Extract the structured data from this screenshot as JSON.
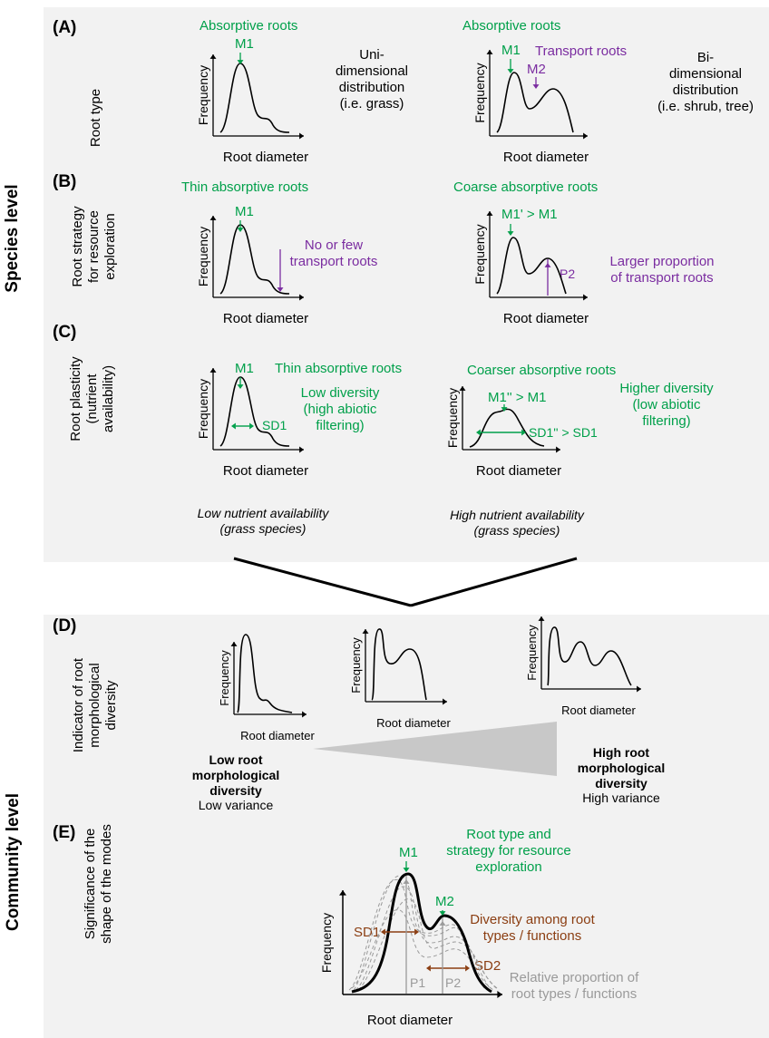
{
  "sections": {
    "species": "Species level",
    "community": "Community level"
  },
  "axis": {
    "frequency": "Frequency",
    "diameter": "Root diameter"
  },
  "A": {
    "label": "(A)",
    "side": "Root type",
    "left_title": "Absorptive roots",
    "left_mode": "M1",
    "left_desc": [
      "Uni-",
      "dimensional",
      "distribution",
      "(i.e. grass)"
    ],
    "right_title": "Absorptive roots",
    "right_mode1": "M1",
    "right_mode2": "M2",
    "right_transport": "Transport roots",
    "right_desc": [
      "Bi-",
      "dimensional",
      "distribution",
      "(i.e. shrub, tree)"
    ]
  },
  "B": {
    "label": "(B)",
    "side": [
      "Root strategy",
      "for resource",
      "exploration"
    ],
    "left_title": "Thin absorptive roots",
    "left_mode": "M1",
    "left_note": [
      "No or few",
      "transport roots"
    ],
    "right_title": "Coarse absorptive roots",
    "right_mode": "M1' > M1",
    "right_p2": "P2",
    "right_note": [
      "Larger proportion",
      "of transport roots"
    ]
  },
  "C": {
    "label": "(C)",
    "side": [
      "Root plasticity",
      "(nutrient",
      "availability)"
    ],
    "left_mode": "M1",
    "left_title": "Thin absorptive roots",
    "left_sd": "SD1",
    "left_note": [
      "Low diversity",
      "(high abiotic",
      "filtering)"
    ],
    "left_caption": [
      "Low nutrient availability",
      "(grass species)"
    ],
    "right_title": "Coarser absorptive roots",
    "right_mode": "M1'' > M1",
    "right_sd": "SD1'' > SD1",
    "right_note": [
      "Higher diversity",
      "(low abiotic",
      "filtering)"
    ],
    "right_caption": [
      "High nutrient availability",
      "(grass species)"
    ]
  },
  "D": {
    "label": "(D)",
    "side": [
      "Indicator of root",
      "morphological",
      "diversity"
    ],
    "low_bold": [
      "Low root",
      "morphological",
      "diversity"
    ],
    "low_sub": "Low variance",
    "high_bold": [
      "High root",
      "morphological",
      "diversity"
    ],
    "high_sub": "High variance"
  },
  "E": {
    "label": "(E)",
    "side": [
      "Significance of the",
      "shape of the modes"
    ],
    "m1": "M1",
    "m2": "M2",
    "sd1": "SD1",
    "sd2": "SD2",
    "p1": "P1",
    "p2": "P2",
    "note_green": [
      "Root type and",
      "strategy for resource",
      "exploration"
    ],
    "note_brown": [
      "Diversity among root",
      "types / functions"
    ],
    "note_grey": [
      "Relative proportion of",
      "root types / functions"
    ]
  },
  "colors": {
    "green": "#00a04a",
    "purple": "#7a2ca0",
    "brown": "#8b3e12",
    "grey": "#9a9a9a",
    "panel": "#f2f2f2"
  }
}
